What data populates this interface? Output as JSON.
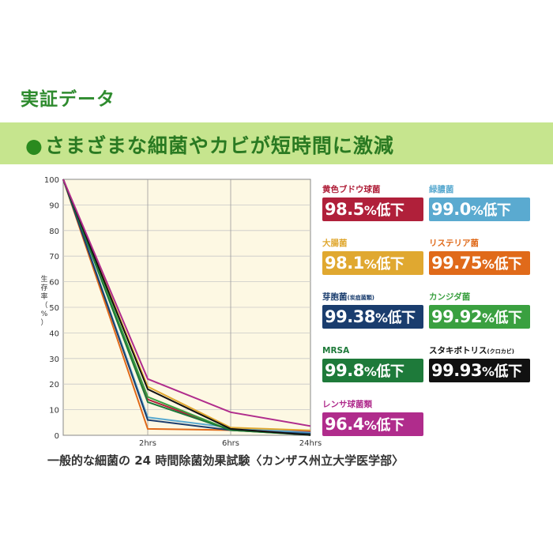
{
  "page": {
    "section_title": "実証データ",
    "banner_bullet": "●",
    "banner_text": "さまざまな細菌やカビが短時間に激減",
    "caption": "一般的な細菌の 24 時間除菌効果試験〈カンザス州立大学医学部〉"
  },
  "chart_data": {
    "type": "line",
    "x": [
      "",
      "2hrs",
      "6hrs",
      "24hrs"
    ],
    "xlabel": "",
    "ylabel": "生存率（%）",
    "ylim": [
      0,
      100
    ],
    "yticks": [
      0,
      10,
      20,
      30,
      40,
      50,
      60,
      70,
      80,
      90,
      100
    ],
    "grid": true,
    "background": "#fdf8e3",
    "series": [
      {
        "name": "黄色ブドウ球菌",
        "color": "#b0203a",
        "values": [
          100,
          14,
          2,
          1.5
        ]
      },
      {
        "name": "緑膿菌",
        "color": "#5aaad0",
        "values": [
          100,
          7,
          3,
          1
        ]
      },
      {
        "name": "大腸菌",
        "color": "#e0a830",
        "values": [
          100,
          19,
          3,
          1.9
        ]
      },
      {
        "name": "リステリア菌",
        "color": "#e06a1a",
        "values": [
          100,
          2.5,
          2,
          0.25
        ]
      },
      {
        "name": "芽胞菌",
        "color": "#1a3d6e",
        "values": [
          100,
          6,
          2,
          0.6
        ]
      },
      {
        "name": "カンジダ菌",
        "color": "#3aa040",
        "values": [
          100,
          15,
          2,
          0.1
        ]
      },
      {
        "name": "MRSA",
        "color": "#1e7a3a",
        "values": [
          100,
          13,
          2,
          0.2
        ]
      },
      {
        "name": "スタキボトリス",
        "color": "#111111",
        "values": [
          100,
          18,
          2.5,
          0.1
        ]
      },
      {
        "name": "レンサ球菌類",
        "color": "#b02c8c",
        "values": [
          100,
          22,
          9,
          3.6
        ]
      }
    ],
    "legend_placement": "right"
  },
  "cards": [
    {
      "label": "黄色ブドウ球菌",
      "label_small": "",
      "value": "98.5",
      "percent": "%",
      "unit": "低下",
      "color": "#b0203a"
    },
    {
      "label": "緑膿菌",
      "label_small": "",
      "value": "99.0",
      "percent": "%",
      "unit": "低下",
      "color": "#5aaad0"
    },
    {
      "label": "大腸菌",
      "label_small": "",
      "value": "98.1",
      "percent": "%",
      "unit": "低下",
      "color": "#e0a830"
    },
    {
      "label": "リステリア菌",
      "label_small": "",
      "value": "99.75",
      "percent": "%",
      "unit": "低下",
      "color": "#e06a1a"
    },
    {
      "label": "芽胞菌",
      "label_small": "(炭疽菌類)",
      "value": "99.38",
      "percent": "%",
      "unit": "低下",
      "color": "#1a3d6e"
    },
    {
      "label": "カンジダ菌",
      "label_small": "",
      "value": "99.92",
      "percent": "%",
      "unit": "低下",
      "color": "#3aa040"
    },
    {
      "label": "MRSA",
      "label_small": "",
      "value": "99.8",
      "percent": "%",
      "unit": "低下",
      "color": "#1e7a3a"
    },
    {
      "label": "スタキボトリス",
      "label_small": "(クロカビ)",
      "value": "99.93",
      "percent": "%",
      "unit": "低下",
      "color": "#111111"
    },
    {
      "label": "レンサ球菌類",
      "label_small": "",
      "value": "96.4",
      "percent": "%",
      "unit": "低下",
      "color": "#b02c8c"
    }
  ]
}
